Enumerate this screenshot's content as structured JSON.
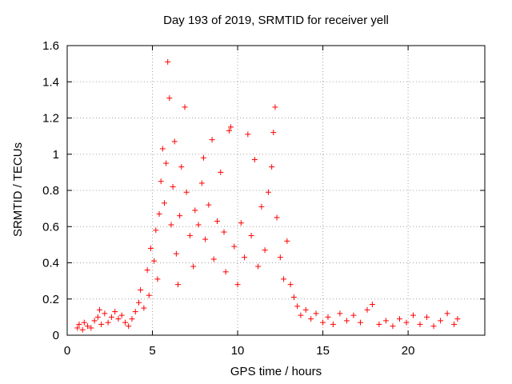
{
  "chart_data": {
    "type": "scatter",
    "title": "Day 193 of 2019, SRMTID for receiver yell",
    "xlabel": "GPS time / hours",
    "ylabel": "SRMTID / TECUs",
    "xlim": [
      0,
      24.5
    ],
    "ylim": [
      0,
      1.6
    ],
    "xticks": [
      0,
      5,
      10,
      15,
      20
    ],
    "yticks": [
      0,
      0.2,
      0.4,
      0.6,
      0.8,
      1,
      1.2,
      1.4,
      1.6
    ],
    "ytick_labels": [
      "0",
      "0.2",
      "0.4",
      "0.6",
      "0.8",
      "1",
      "1.2",
      "1.4",
      "1.6"
    ],
    "grid": true,
    "marker": "+",
    "series": [
      {
        "name": "SRMTID",
        "color": "#ff0000",
        "points": [
          [
            0.6,
            0.04
          ],
          [
            0.7,
            0.06
          ],
          [
            0.9,
            0.03
          ],
          [
            1.0,
            0.07
          ],
          [
            1.2,
            0.05
          ],
          [
            1.4,
            0.04
          ],
          [
            1.6,
            0.08
          ],
          [
            1.8,
            0.1
          ],
          [
            1.9,
            0.14
          ],
          [
            2.0,
            0.06
          ],
          [
            2.2,
            0.12
          ],
          [
            2.4,
            0.07
          ],
          [
            2.6,
            0.1
          ],
          [
            2.8,
            0.13
          ],
          [
            3.0,
            0.09
          ],
          [
            3.2,
            0.11
          ],
          [
            3.4,
            0.07
          ],
          [
            3.6,
            0.05
          ],
          [
            3.8,
            0.09
          ],
          [
            4.0,
            0.13
          ],
          [
            4.2,
            0.18
          ],
          [
            4.3,
            0.25
          ],
          [
            4.5,
            0.15
          ],
          [
            4.7,
            0.36
          ],
          [
            4.8,
            0.22
          ],
          [
            4.9,
            0.48
          ],
          [
            5.1,
            0.41
          ],
          [
            5.2,
            0.58
          ],
          [
            5.3,
            0.31
          ],
          [
            5.4,
            0.67
          ],
          [
            5.5,
            0.85
          ],
          [
            5.6,
            1.03
          ],
          [
            5.7,
            0.73
          ],
          [
            5.8,
            0.95
          ],
          [
            5.9,
            1.51
          ],
          [
            6.0,
            1.31
          ],
          [
            6.1,
            0.61
          ],
          [
            6.2,
            0.82
          ],
          [
            6.3,
            1.07
          ],
          [
            6.4,
            0.45
          ],
          [
            6.5,
            0.28
          ],
          [
            6.6,
            0.66
          ],
          [
            6.7,
            0.93
          ],
          [
            6.9,
            1.26
          ],
          [
            7.0,
            0.79
          ],
          [
            7.2,
            0.55
          ],
          [
            7.4,
            0.38
          ],
          [
            7.5,
            0.69
          ],
          [
            7.7,
            0.61
          ],
          [
            7.9,
            0.84
          ],
          [
            8.0,
            0.98
          ],
          [
            8.1,
            0.53
          ],
          [
            8.3,
            0.72
          ],
          [
            8.5,
            1.08
          ],
          [
            8.6,
            0.42
          ],
          [
            8.8,
            0.63
          ],
          [
            9.0,
            0.9
          ],
          [
            9.2,
            0.57
          ],
          [
            9.3,
            0.35
          ],
          [
            9.5,
            1.13
          ],
          [
            9.6,
            1.15
          ],
          [
            9.8,
            0.49
          ],
          [
            10.0,
            0.28
          ],
          [
            10.2,
            0.62
          ],
          [
            10.4,
            0.43
          ],
          [
            10.6,
            1.11
          ],
          [
            10.8,
            0.55
          ],
          [
            11.0,
            0.97
          ],
          [
            11.2,
            0.38
          ],
          [
            11.4,
            0.71
          ],
          [
            11.6,
            0.47
          ],
          [
            11.8,
            0.79
          ],
          [
            12.0,
            0.93
          ],
          [
            12.1,
            1.12
          ],
          [
            12.2,
            1.26
          ],
          [
            12.3,
            0.65
          ],
          [
            12.5,
            0.43
          ],
          [
            12.7,
            0.31
          ],
          [
            12.9,
            0.52
          ],
          [
            13.1,
            0.28
          ],
          [
            13.3,
            0.21
          ],
          [
            13.5,
            0.16
          ],
          [
            13.7,
            0.11
          ],
          [
            14.0,
            0.14
          ],
          [
            14.3,
            0.09
          ],
          [
            14.6,
            0.12
          ],
          [
            15.0,
            0.07
          ],
          [
            15.3,
            0.1
          ],
          [
            15.6,
            0.06
          ],
          [
            16.0,
            0.12
          ],
          [
            16.4,
            0.08
          ],
          [
            16.8,
            0.11
          ],
          [
            17.2,
            0.07
          ],
          [
            17.6,
            0.14
          ],
          [
            17.9,
            0.17
          ],
          [
            18.3,
            0.06
          ],
          [
            18.7,
            0.08
          ],
          [
            19.1,
            0.05
          ],
          [
            19.5,
            0.09
          ],
          [
            19.9,
            0.07
          ],
          [
            20.3,
            0.11
          ],
          [
            20.7,
            0.06
          ],
          [
            21.1,
            0.1
          ],
          [
            21.5,
            0.05
          ],
          [
            21.9,
            0.08
          ],
          [
            22.3,
            0.12
          ],
          [
            22.7,
            0.06
          ],
          [
            22.9,
            0.09
          ]
        ]
      }
    ]
  }
}
